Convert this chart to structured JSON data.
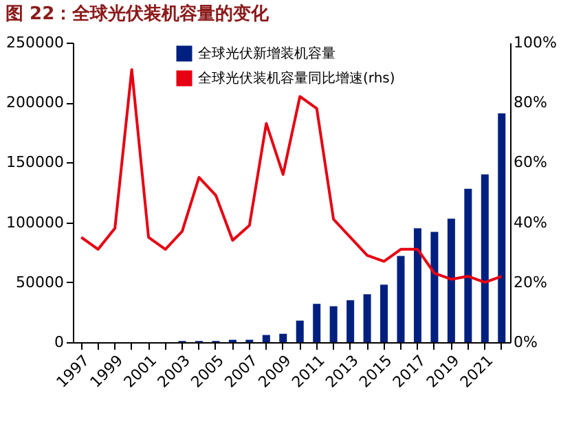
{
  "chart_data": {
    "type": "bar",
    "title": "图 22：全球光伏装机容量的变化",
    "categories": [
      "1997",
      null,
      "1999",
      null,
      "2001",
      null,
      "2003",
      null,
      "2005",
      null,
      "2007",
      null,
      "2009",
      null,
      "2011",
      null,
      "2013",
      null,
      "2015",
      null,
      "2017",
      null,
      "2019",
      null,
      "2021",
      null
    ],
    "series": [
      {
        "name": "全球光伏新增装机容量",
        "color": "#002080",
        "values": [
          0,
          0,
          0,
          0,
          0,
          0,
          1000,
          1000,
          1000,
          2000,
          2000,
          6000,
          7000,
          18000,
          32000,
          30000,
          35000,
          40000,
          48000,
          72000,
          95000,
          92000,
          103000,
          128000,
          140000,
          191000
        ]
      },
      {
        "name": "全球光伏装机容量同比增速(rhs)",
        "type": "line",
        "axis": "y2",
        "color": "#e60012",
        "values": [
          35,
          31,
          38,
          91,
          35,
          31,
          37,
          55,
          49,
          34,
          39,
          73,
          56,
          82,
          78,
          41,
          35,
          29,
          27,
          31,
          31,
          23,
          21,
          22,
          20,
          22
        ]
      }
    ],
    "ylim": [
      0,
      250000
    ],
    "yticks": [
      0,
      50000,
      100000,
      150000,
      200000,
      250000
    ],
    "y2lim": [
      0,
      100
    ],
    "y2ticks": [
      {
        "value": 0,
        "label": "0%"
      },
      {
        "value": 20,
        "label": "20%"
      },
      {
        "value": 40,
        "label": "40%"
      },
      {
        "value": 60,
        "label": "60%"
      },
      {
        "value": 80,
        "label": "80%"
      },
      {
        "value": 100,
        "label": "100%"
      }
    ],
    "legend": "top left",
    "grid": false
  }
}
